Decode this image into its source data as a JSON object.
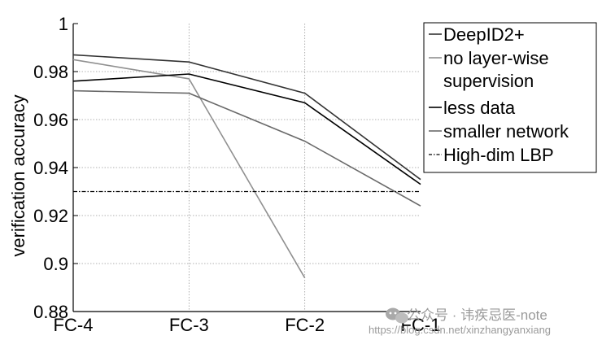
{
  "chart_data": {
    "type": "line",
    "xlabel": "",
    "ylabel": "verification accuracy",
    "categories": [
      "FC-4",
      "FC-3",
      "FC-2",
      "FC-1"
    ],
    "ylim": [
      0.88,
      1.0
    ],
    "yticks": [
      "0.88",
      "0.9",
      "0.92",
      "0.94",
      "0.96",
      "0.98",
      "1"
    ],
    "grid": true,
    "legend_position": "right",
    "series": [
      {
        "name": "DeepID2+",
        "values": [
          0.987,
          0.984,
          0.971,
          0.935
        ],
        "color": "#333333",
        "dash": "solid"
      },
      {
        "name": "no layer-wise supervision",
        "name_lines": [
          "no layer-wise",
          "supervision"
        ],
        "values": [
          0.985,
          0.977,
          0.894,
          null
        ],
        "color": "#909090",
        "dash": "solid"
      },
      {
        "name": "less data",
        "values": [
          0.976,
          0.979,
          0.967,
          0.933
        ],
        "color": "#000000",
        "dash": "solid"
      },
      {
        "name": "smaller network",
        "values": [
          0.972,
          0.971,
          0.951,
          0.924
        ],
        "color": "#6a6a6a",
        "dash": "solid"
      },
      {
        "name": "High-dim LBP",
        "values": [
          0.93,
          0.93,
          0.93,
          0.93
        ],
        "color": "#000000",
        "dash": "dashdot"
      }
    ]
  },
  "watermark": {
    "line1": "公众号 · 讳疾忌医-note",
    "line2": "https://blog.csdn.net/xinzhangyanxiang"
  }
}
